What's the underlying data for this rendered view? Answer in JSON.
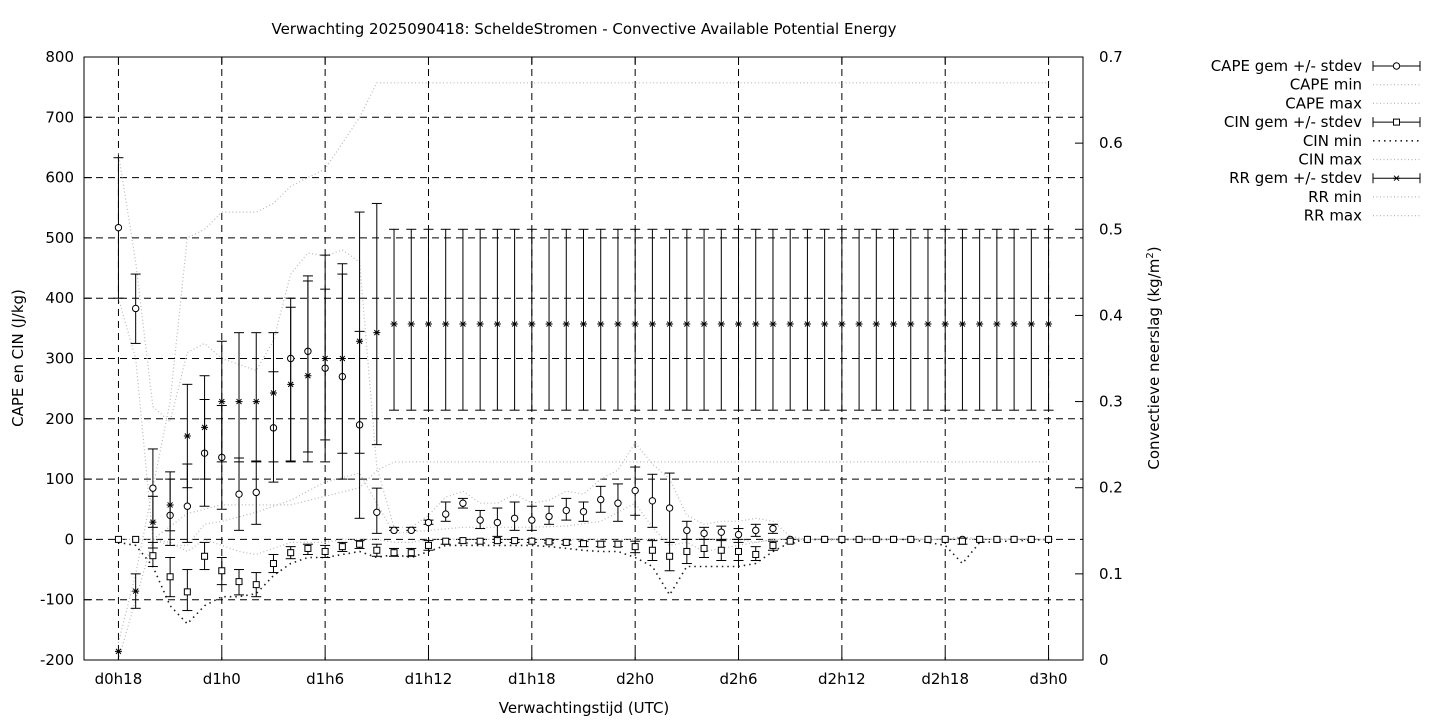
{
  "chart_data": {
    "type": "scatter",
    "title": "Verwachting 2025090418: ScheldeStromen - Convective Available Potential Energy",
    "xlabel": "Verwachtingstijd (UTC)",
    "ylabel": "CAPE en CIN (J/kg)",
    "y2label": "Convectieve neerslag (kg/m",
    "y2label_sup": "2",
    "y2label_end": ")",
    "ylim": [
      -200,
      800
    ],
    "y2lim": [
      0,
      0.7
    ],
    "xlim": [
      -2,
      56
    ],
    "grid": true,
    "legend_position": "top-right (outside plot)",
    "x_ticks": [
      {
        "x": 0,
        "label": "d0h18"
      },
      {
        "x": 6,
        "label": "d1h0"
      },
      {
        "x": 12,
        "label": "d1h6"
      },
      {
        "x": 18,
        "label": "d1h12"
      },
      {
        "x": 24,
        "label": "d1h18"
      },
      {
        "x": 30,
        "label": "d2h0"
      },
      {
        "x": 36,
        "label": "d2h6"
      },
      {
        "x": 42,
        "label": "d2h12"
      },
      {
        "x": 48,
        "label": "d2h18"
      },
      {
        "x": 54,
        "label": "d3h0"
      }
    ],
    "y_ticks": [
      "-200",
      "-100",
      "0",
      "100",
      "200",
      "300",
      "400",
      "500",
      "600",
      "700",
      "800"
    ],
    "y2_ticks": [
      "0",
      "0.1",
      "0.2",
      "0.3",
      "0.4",
      "0.5",
      "0.6",
      "0.7"
    ],
    "legend": [
      {
        "label": "CAPE gem +/- stdev",
        "style": "errorbar",
        "marker": "circle"
      },
      {
        "label": "CAPE min",
        "style": "dotted-light"
      },
      {
        "label": "CAPE max",
        "style": "dotted-light"
      },
      {
        "label": "CIN gem +/- stdev",
        "style": "errorbar",
        "marker": "square"
      },
      {
        "label": "CIN min",
        "style": "dotted-dark"
      },
      {
        "label": "CIN max",
        "style": "dotted-light"
      },
      {
        "label": "RR gem +/- stdev",
        "style": "errorbar",
        "marker": "star"
      },
      {
        "label": "RR min",
        "style": "dotted-light"
      },
      {
        "label": "RR max",
        "style": "dotted-light"
      }
    ],
    "colors": {
      "series": "#000000",
      "dotted_light": "#b8b8b8",
      "dotted_dark": "#202020",
      "grid": "#000000"
    },
    "series": [
      {
        "name": "CAPE gem +/- stdev",
        "axis": "y",
        "x": [
          0,
          1,
          2,
          3,
          4,
          5,
          6,
          7,
          8,
          9,
          10,
          11,
          12,
          13,
          14,
          15,
          16,
          17,
          18,
          19,
          20,
          21,
          22,
          23,
          24,
          25,
          26,
          27,
          28,
          29,
          30,
          31,
          32,
          33,
          34,
          35,
          36,
          37,
          38,
          39,
          40,
          41,
          42,
          43,
          44,
          45,
          46,
          47,
          48,
          49,
          50,
          51,
          52,
          53,
          54
        ],
        "mean": [
          517,
          383,
          85,
          40,
          55,
          143,
          136,
          75,
          78,
          185,
          300,
          312,
          284,
          270,
          190,
          45,
          15,
          15,
          28,
          42,
          60,
          32,
          28,
          35,
          32,
          38,
          48,
          46,
          66,
          60,
          81,
          64,
          52,
          15,
          10,
          12,
          8,
          15,
          18,
          0,
          0,
          0,
          0,
          0,
          0,
          0,
          0,
          0,
          0,
          0,
          0,
          0,
          0,
          0,
          0
        ],
        "lo": [
          400,
          325,
          20,
          -10,
          -5,
          55,
          50,
          15,
          25,
          95,
          130,
          145,
          165,
          100,
          35,
          10,
          15,
          15,
          25,
          30,
          52,
          18,
          5,
          15,
          15,
          25,
          32,
          30,
          45,
          30,
          40,
          20,
          -5,
          0,
          0,
          0,
          0,
          5,
          10,
          0,
          0,
          0,
          0,
          0,
          0,
          0,
          0,
          0,
          0,
          0,
          0,
          0,
          0,
          0,
          0
        ],
        "hi": [
          633,
          440,
          150,
          112,
          125,
          232,
          222,
          135,
          130,
          278,
          385,
          437,
          415,
          440,
          345,
          85,
          20,
          20,
          32,
          62,
          68,
          48,
          52,
          62,
          55,
          55,
          68,
          62,
          88,
          92,
          120,
          108,
          110,
          30,
          20,
          22,
          18,
          25,
          25,
          0,
          0,
          0,
          0,
          0,
          0,
          0,
          0,
          0,
          0,
          0,
          0,
          0,
          0,
          0,
          0
        ]
      },
      {
        "name": "CAPE min",
        "axis": "y",
        "x": [
          0,
          1,
          2,
          3,
          4,
          5,
          6,
          8,
          10,
          12,
          14,
          16,
          18,
          20,
          22,
          24,
          26,
          28,
          30,
          31,
          32,
          33,
          34,
          36,
          38,
          40,
          46,
          48,
          50,
          54
        ],
        "values": [
          400,
          300,
          0,
          -10,
          -10,
          25,
          30,
          45,
          65,
          95,
          110,
          10,
          15,
          20,
          20,
          20,
          22,
          30,
          60,
          20,
          -10,
          -5,
          -20,
          -10,
          0,
          0,
          0,
          0,
          0,
          0
        ]
      },
      {
        "name": "CAPE max",
        "axis": "y",
        "x": [
          0,
          1,
          2,
          3,
          4,
          5,
          6,
          7,
          8,
          9,
          10,
          11,
          12,
          13,
          14,
          15,
          16,
          17,
          18,
          19,
          20,
          21,
          22,
          23,
          24,
          25,
          26,
          27,
          28,
          29,
          30,
          31,
          32,
          33,
          34,
          35,
          36,
          37,
          38,
          39,
          40,
          42,
          46,
          48,
          50,
          54
        ],
        "values": [
          640,
          460,
          220,
          195,
          310,
          325,
          300,
          290,
          280,
          330,
          440,
          475,
          470,
          480,
          460,
          120,
          20,
          20,
          40,
          70,
          80,
          60,
          60,
          75,
          60,
          65,
          80,
          75,
          100,
          115,
          160,
          125,
          100,
          40,
          25,
          30,
          30,
          35,
          30,
          5,
          0,
          0,
          0,
          0,
          0,
          0
        ]
      },
      {
        "name": "CIN gem +/- stdev",
        "axis": "y",
        "x": [
          0,
          1,
          2,
          3,
          4,
          5,
          6,
          7,
          8,
          9,
          10,
          11,
          12,
          13,
          14,
          15,
          16,
          17,
          18,
          19,
          20,
          21,
          22,
          23,
          24,
          25,
          26,
          27,
          28,
          29,
          30,
          31,
          32,
          33,
          34,
          35,
          36,
          37,
          38,
          39,
          40,
          41,
          42,
          43,
          44,
          45,
          46,
          47,
          48,
          49,
          50,
          51,
          52,
          53,
          54
        ],
        "mean": [
          0,
          0,
          -27,
          -62,
          -87,
          -28,
          -52,
          -70,
          -75,
          -40,
          -22,
          -15,
          -20,
          -12,
          -8,
          -18,
          -22,
          -22,
          -10,
          -3,
          -2,
          -3,
          -2,
          -2,
          -3,
          -4,
          -5,
          -7,
          -8,
          -8,
          -12,
          -18,
          -28,
          -20,
          -15,
          -18,
          -20,
          -25,
          -10,
          -3,
          0,
          0,
          0,
          0,
          0,
          0,
          0,
          0,
          0,
          -3,
          0,
          0,
          0,
          0,
          0
        ],
        "lo": [
          0,
          0,
          -45,
          -95,
          -118,
          -50,
          -75,
          -92,
          -95,
          -55,
          -32,
          -25,
          -30,
          -20,
          -15,
          -28,
          -28,
          -28,
          -18,
          -8,
          -6,
          -6,
          -5,
          -5,
          -5,
          -6,
          -8,
          -12,
          -12,
          -12,
          -22,
          -35,
          -52,
          -40,
          -30,
          -35,
          -35,
          -35,
          -18,
          -6,
          0,
          0,
          0,
          0,
          0,
          0,
          0,
          0,
          0,
          -8,
          0,
          0,
          0,
          0,
          0
        ],
        "hi": [
          0,
          0,
          -5,
          -30,
          -50,
          -5,
          -30,
          -50,
          -55,
          -25,
          -12,
          -8,
          -10,
          -5,
          -2,
          -8,
          -15,
          -15,
          -2,
          0,
          0,
          0,
          0,
          0,
          0,
          -2,
          -2,
          -3,
          -3,
          -3,
          -3,
          -2,
          -5,
          0,
          0,
          -2,
          -5,
          -12,
          -3,
          0,
          0,
          0,
          0,
          0,
          0,
          0,
          0,
          0,
          0,
          2,
          0,
          0,
          0,
          0,
          0
        ]
      },
      {
        "name": "CIN min",
        "axis": "y",
        "x": [
          0,
          1,
          2,
          3,
          4,
          5,
          6,
          7,
          8,
          9,
          10,
          11,
          12,
          13,
          14,
          15,
          16,
          17,
          18,
          19,
          20,
          21,
          22,
          23,
          24,
          25,
          26,
          27,
          28,
          29,
          30,
          31,
          32,
          33,
          34,
          35,
          36,
          37,
          38,
          39,
          40,
          46,
          47,
          48,
          49,
          50,
          54
        ],
        "values": [
          -5,
          -10,
          -45,
          -110,
          -140,
          -110,
          -95,
          -95,
          -90,
          -60,
          -40,
          -30,
          -30,
          -25,
          -20,
          -30,
          -25,
          -30,
          -20,
          -10,
          -10,
          -10,
          -10,
          -10,
          -10,
          -12,
          -15,
          -18,
          -20,
          -20,
          -30,
          -45,
          -92,
          -45,
          -45,
          -45,
          -45,
          -40,
          -20,
          -5,
          0,
          0,
          -5,
          -10,
          -40,
          -5,
          0
        ]
      },
      {
        "name": "CIN max",
        "axis": "y",
        "x": [
          0,
          1,
          2,
          3,
          4,
          5,
          6,
          7,
          8,
          9,
          10,
          11,
          12,
          13,
          14,
          15,
          16,
          17,
          18,
          19,
          20,
          21,
          22,
          23,
          24,
          25,
          26,
          27,
          28,
          29,
          30,
          31,
          32,
          33,
          34,
          35,
          36,
          37,
          38,
          39,
          40,
          46,
          47,
          48,
          49,
          50,
          54
        ],
        "values": [
          0,
          0,
          0,
          -5,
          -20,
          0,
          -10,
          -20,
          -25,
          -15,
          -5,
          -5,
          -5,
          0,
          0,
          0,
          -5,
          -5,
          0,
          0,
          0,
          0,
          0,
          0,
          0,
          0,
          0,
          0,
          0,
          0,
          0,
          0,
          0,
          0,
          0,
          0,
          0,
          -5,
          0,
          0,
          0,
          0,
          0,
          0,
          5,
          0,
          0
        ]
      },
      {
        "name": "RR gem +/- stdev",
        "axis": "y2",
        "x": [
          0,
          1,
          2,
          3,
          4,
          5,
          6,
          7,
          8,
          9,
          10,
          11,
          12,
          13,
          14,
          15,
          16,
          17,
          18,
          19,
          20,
          21,
          22,
          23,
          24,
          25,
          26,
          27,
          28,
          29,
          30,
          31,
          32,
          33,
          34,
          35,
          36,
          37,
          38,
          39,
          40,
          41,
          42,
          43,
          44,
          45,
          46,
          47,
          48,
          49,
          50,
          51,
          52,
          53,
          54
        ],
        "mean": [
          0.01,
          0.08,
          0.16,
          0.18,
          0.26,
          0.27,
          0.3,
          0.3,
          0.3,
          0.31,
          0.32,
          0.33,
          0.35,
          0.35,
          0.37,
          0.38,
          0.39,
          0.39,
          0.39,
          0.39,
          0.39,
          0.39,
          0.39,
          0.39,
          0.39,
          0.39,
          0.39,
          0.39,
          0.39,
          0.39,
          0.39,
          0.39,
          0.39,
          0.39,
          0.39,
          0.39,
          0.39,
          0.39,
          0.39,
          0.39,
          0.39,
          0.39,
          0.39,
          0.39,
          0.39,
          0.39,
          0.39,
          0.39,
          0.39,
          0.39,
          0.39,
          0.39,
          0.39,
          0.39,
          0.39
        ],
        "lo": [
          0.01,
          0.06,
          0.13,
          0.15,
          0.2,
          0.21,
          0.23,
          0.23,
          0.23,
          0.23,
          0.23,
          0.23,
          0.23,
          0.24,
          0.24,
          0.25,
          0.29,
          0.29,
          0.29,
          0.29,
          0.29,
          0.29,
          0.29,
          0.29,
          0.29,
          0.29,
          0.29,
          0.29,
          0.29,
          0.29,
          0.29,
          0.29,
          0.29,
          0.29,
          0.29,
          0.29,
          0.29,
          0.29,
          0.29,
          0.29,
          0.29,
          0.29,
          0.29,
          0.29,
          0.29,
          0.29,
          0.29,
          0.29,
          0.29,
          0.29,
          0.29,
          0.29,
          0.29,
          0.29,
          0.29
        ],
        "hi": [
          0.01,
          0.1,
          0.19,
          0.21,
          0.32,
          0.33,
          0.37,
          0.38,
          0.38,
          0.38,
          0.42,
          0.44,
          0.47,
          0.46,
          0.52,
          0.53,
          0.5,
          0.5,
          0.5,
          0.5,
          0.5,
          0.5,
          0.5,
          0.5,
          0.5,
          0.5,
          0.5,
          0.5,
          0.5,
          0.5,
          0.5,
          0.5,
          0.5,
          0.5,
          0.5,
          0.5,
          0.5,
          0.5,
          0.5,
          0.5,
          0.5,
          0.5,
          0.5,
          0.5,
          0.5,
          0.5,
          0.5,
          0.5,
          0.5,
          0.5,
          0.5,
          0.5,
          0.5,
          0.5,
          0.5
        ]
      },
      {
        "name": "RR min",
        "axis": "y2",
        "x": [
          0,
          2,
          4,
          6,
          8,
          10,
          12,
          14,
          15,
          16,
          54
        ],
        "values": [
          0.0,
          0.14,
          0.17,
          0.18,
          0.18,
          0.18,
          0.19,
          0.2,
          0.22,
          0.23,
          0.23
        ]
      },
      {
        "name": "RR max",
        "axis": "y2",
        "x": [
          0,
          1,
          2,
          3,
          4,
          5,
          6,
          7,
          8,
          9,
          10,
          11,
          12,
          13,
          14,
          15,
          16,
          54
        ],
        "values": [
          0.02,
          0.1,
          0.2,
          0.3,
          0.49,
          0.5,
          0.52,
          0.52,
          0.52,
          0.53,
          0.55,
          0.56,
          0.57,
          0.6,
          0.63,
          0.67,
          0.67,
          0.67
        ]
      }
    ]
  }
}
